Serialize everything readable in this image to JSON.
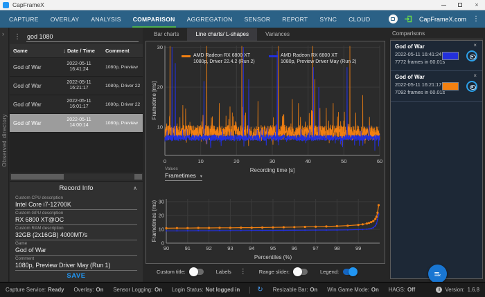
{
  "window": {
    "title": "CapFrameX"
  },
  "nav": {
    "tabs": [
      "CAPTURE",
      "OVERLAY",
      "ANALYSIS",
      "COMPARISON",
      "AGGREGATION",
      "SENSOR",
      "REPORT",
      "SYNC",
      "CLOUD"
    ],
    "active_index": 3,
    "brand": "CapFrameX.com"
  },
  "observed_directory": "Observed directory",
  "left": {
    "search": {
      "value": "god 1080"
    },
    "table": {
      "headers": {
        "game": "Game",
        "date": "Date / Time",
        "comment": "Comment"
      },
      "rows": [
        {
          "game": "God of War",
          "date": "2022-05-11",
          "time": "16:41:24",
          "comment": "1080p, Preview",
          "selected": false
        },
        {
          "game": "God of War",
          "date": "2022-05-11",
          "time": "16:21:17",
          "comment": "1080p, Driver 22",
          "selected": false
        },
        {
          "game": "God of War",
          "date": "2022-05-11",
          "time": "16:01:17",
          "comment": "1080p, Driver 22",
          "selected": false
        },
        {
          "game": "God of War",
          "date": "2022-05-11",
          "time": "14:00:14",
          "comment": "1080p, Preview",
          "selected": true
        }
      ]
    },
    "record_info": {
      "title": "Record Info",
      "fields": [
        {
          "label": "Custom CPU description",
          "value": "Intel Core i7-12700K"
        },
        {
          "label": "Custom GPU description",
          "value": "RX 6800 XT@OC"
        },
        {
          "label": "Custom RAM description",
          "value": "32GB (2x16GB) 4000MT/s"
        },
        {
          "label": "Game",
          "value": "God of War"
        },
        {
          "label": "Comment",
          "value": "1080p, Preview Driver May  (Run 1)"
        }
      ],
      "save_label": "SAVE"
    }
  },
  "center": {
    "tabs": [
      "Bar charts",
      "Line charts/ L-shapes",
      "Variances"
    ],
    "active_tab": 1,
    "toggles": [
      {
        "label": "Custom title:",
        "on": false
      },
      {
        "label": "Labels",
        "menu": true
      },
      {
        "label": "Range slider:",
        "on": false
      },
      {
        "label": "Legend:",
        "on": true
      }
    ]
  },
  "charts": {
    "frametimes": {
      "type": "line",
      "ylabel": "Frametime [ms]",
      "xlabel": "Recording time [s]",
      "yticks": [
        10,
        20,
        30
      ],
      "xticks": [
        0,
        10,
        20,
        30,
        40,
        50,
        60
      ],
      "xmax": 60,
      "values_label": "Values",
      "values_selected": "Frametimes",
      "legend": [
        {
          "series": "orange",
          "line1": "AMD Radeon RX 6800 XT",
          "line2": "1080p, Driver 22.4.2 (Run 2)"
        },
        {
          "series": "blue",
          "line1": "AMD Radeon RX 6800 XT",
          "line2": "1080p, Preview Driver May (Run 2)"
        }
      ],
      "series": [
        {
          "name": "orange",
          "seed": 7,
          "points": 1400,
          "base": 8.6,
          "jitter": 1.9,
          "microP": 0.06,
          "microAmp": 6,
          "dipP": 0.03,
          "dipAmp": 2.2,
          "width": 0.8,
          "opacity": 1,
          "spikes": [
            [
              1.4,
              30.3
            ],
            [
              5.0,
              15.5
            ],
            [
              11.7,
              30.3
            ],
            [
              15.2,
              16
            ],
            [
              21.5,
              30.3
            ],
            [
              26.0,
              16.5
            ],
            [
              31.7,
              30.3
            ],
            [
              35.6,
              17
            ],
            [
              41.3,
              30.3
            ],
            [
              41.9,
              22
            ],
            [
              47.0,
              16
            ],
            [
              51.7,
              30.3
            ],
            [
              55.3,
              18
            ]
          ]
        },
        {
          "name": "blue",
          "seed": 13,
          "points": 1200,
          "base": 7.3,
          "jitter": 0.75,
          "microP": 0.02,
          "microAmp": 3,
          "dipP": 0.018,
          "dipAmp": 2.6,
          "width": 1,
          "opacity": 1,
          "spikes": [
            [
              2.0,
              30
            ],
            [
              2.9,
              26
            ],
            [
              10.9,
              21.5
            ],
            [
              21.9,
              30
            ],
            [
              23.4,
              22
            ],
            [
              31.4,
              29
            ],
            [
              41.5,
              25
            ],
            [
              43.0,
              20
            ],
            [
              50.9,
              25
            ]
          ]
        }
      ]
    },
    "percentiles": {
      "type": "line",
      "ylabel": "Frametimes (ms)",
      "xlabel": "Percentiles (%)",
      "yticks": [
        0,
        10,
        20,
        30
      ],
      "xticks": [
        90,
        91,
        92,
        93,
        94,
        95,
        96,
        97,
        98,
        99
      ],
      "series": [
        {
          "name": "blue",
          "x": [
            90,
            90.5,
            91,
            91.5,
            92,
            92.5,
            93,
            93.5,
            94,
            94.5,
            95,
            95.5,
            96,
            96.5,
            97,
            97.5,
            98,
            98.5,
            99,
            99.2,
            99.4,
            99.5,
            99.6,
            99.7,
            99.8,
            99.85,
            99.9,
            99.95
          ],
          "y": [
            8.9,
            8.9,
            8.95,
            9.0,
            9.0,
            9.05,
            9.1,
            9.1,
            9.15,
            9.2,
            9.2,
            9.25,
            9.3,
            9.35,
            9.4,
            9.45,
            9.5,
            9.6,
            9.8,
            9.9,
            10.1,
            10.3,
            10.6,
            11.2,
            12.5,
            14.0,
            17.0,
            21.0
          ]
        },
        {
          "name": "orange",
          "x": [
            90,
            90.5,
            91,
            91.5,
            92,
            92.5,
            93,
            93.5,
            94,
            94.5,
            95,
            95.5,
            96,
            96.5,
            97,
            97.5,
            98,
            98.5,
            99,
            99.2,
            99.4,
            99.5,
            99.6,
            99.7,
            99.8,
            99.85,
            99.9,
            99.95
          ],
          "y": [
            10.8,
            10.9,
            10.9,
            11.0,
            11.0,
            11.1,
            11.1,
            11.2,
            11.2,
            11.3,
            11.4,
            11.5,
            11.6,
            11.75,
            11.9,
            12.05,
            12.3,
            12.65,
            13.2,
            13.6,
            14.2,
            14.6,
            15.2,
            16.0,
            17.5,
            19.0,
            22.0,
            27.5
          ]
        }
      ]
    }
  },
  "comparisons": {
    "title": "Comparisons",
    "items": [
      {
        "title": "God of War",
        "datetime": "2022-05-11 16:41:24",
        "frames": "7772 frames in 60.01s",
        "series": "blue"
      },
      {
        "title": "God of War",
        "datetime": "2022-05-11 16:21:17",
        "frames": "7092 frames in 60.01s",
        "series": "orange"
      }
    ]
  },
  "statusbar": {
    "items": [
      {
        "label": "Capture Service:",
        "value": "Ready",
        "color": "green"
      },
      {
        "label": "Overlay:",
        "value": "On",
        "color": "green"
      },
      {
        "label": "Sensor Logging:",
        "value": "On",
        "color": "green"
      },
      {
        "label": "Login Status:",
        "value": "Not logged in",
        "color": "red"
      },
      {
        "label": "Resizable Bar:",
        "value": "On",
        "color": "green"
      },
      {
        "label": "Win Game Mode:",
        "value": "On",
        "color": "green"
      },
      {
        "label": "HAGS:",
        "value": "Off",
        "color": "orange"
      }
    ],
    "version_label": "Version:",
    "version_value": "1.6.8"
  },
  "colors": {
    "accent_blue": "#2196f3",
    "nav_blue": "#2b6186",
    "tab_green": "#4caf50",
    "series_orange": "#f28011",
    "series_blue": "#2330dc",
    "status_green": "#4ecb5a",
    "status_red": "#ff4a2f",
    "status_orange": "#ff7d3a",
    "card_bg": "#1d2836"
  }
}
